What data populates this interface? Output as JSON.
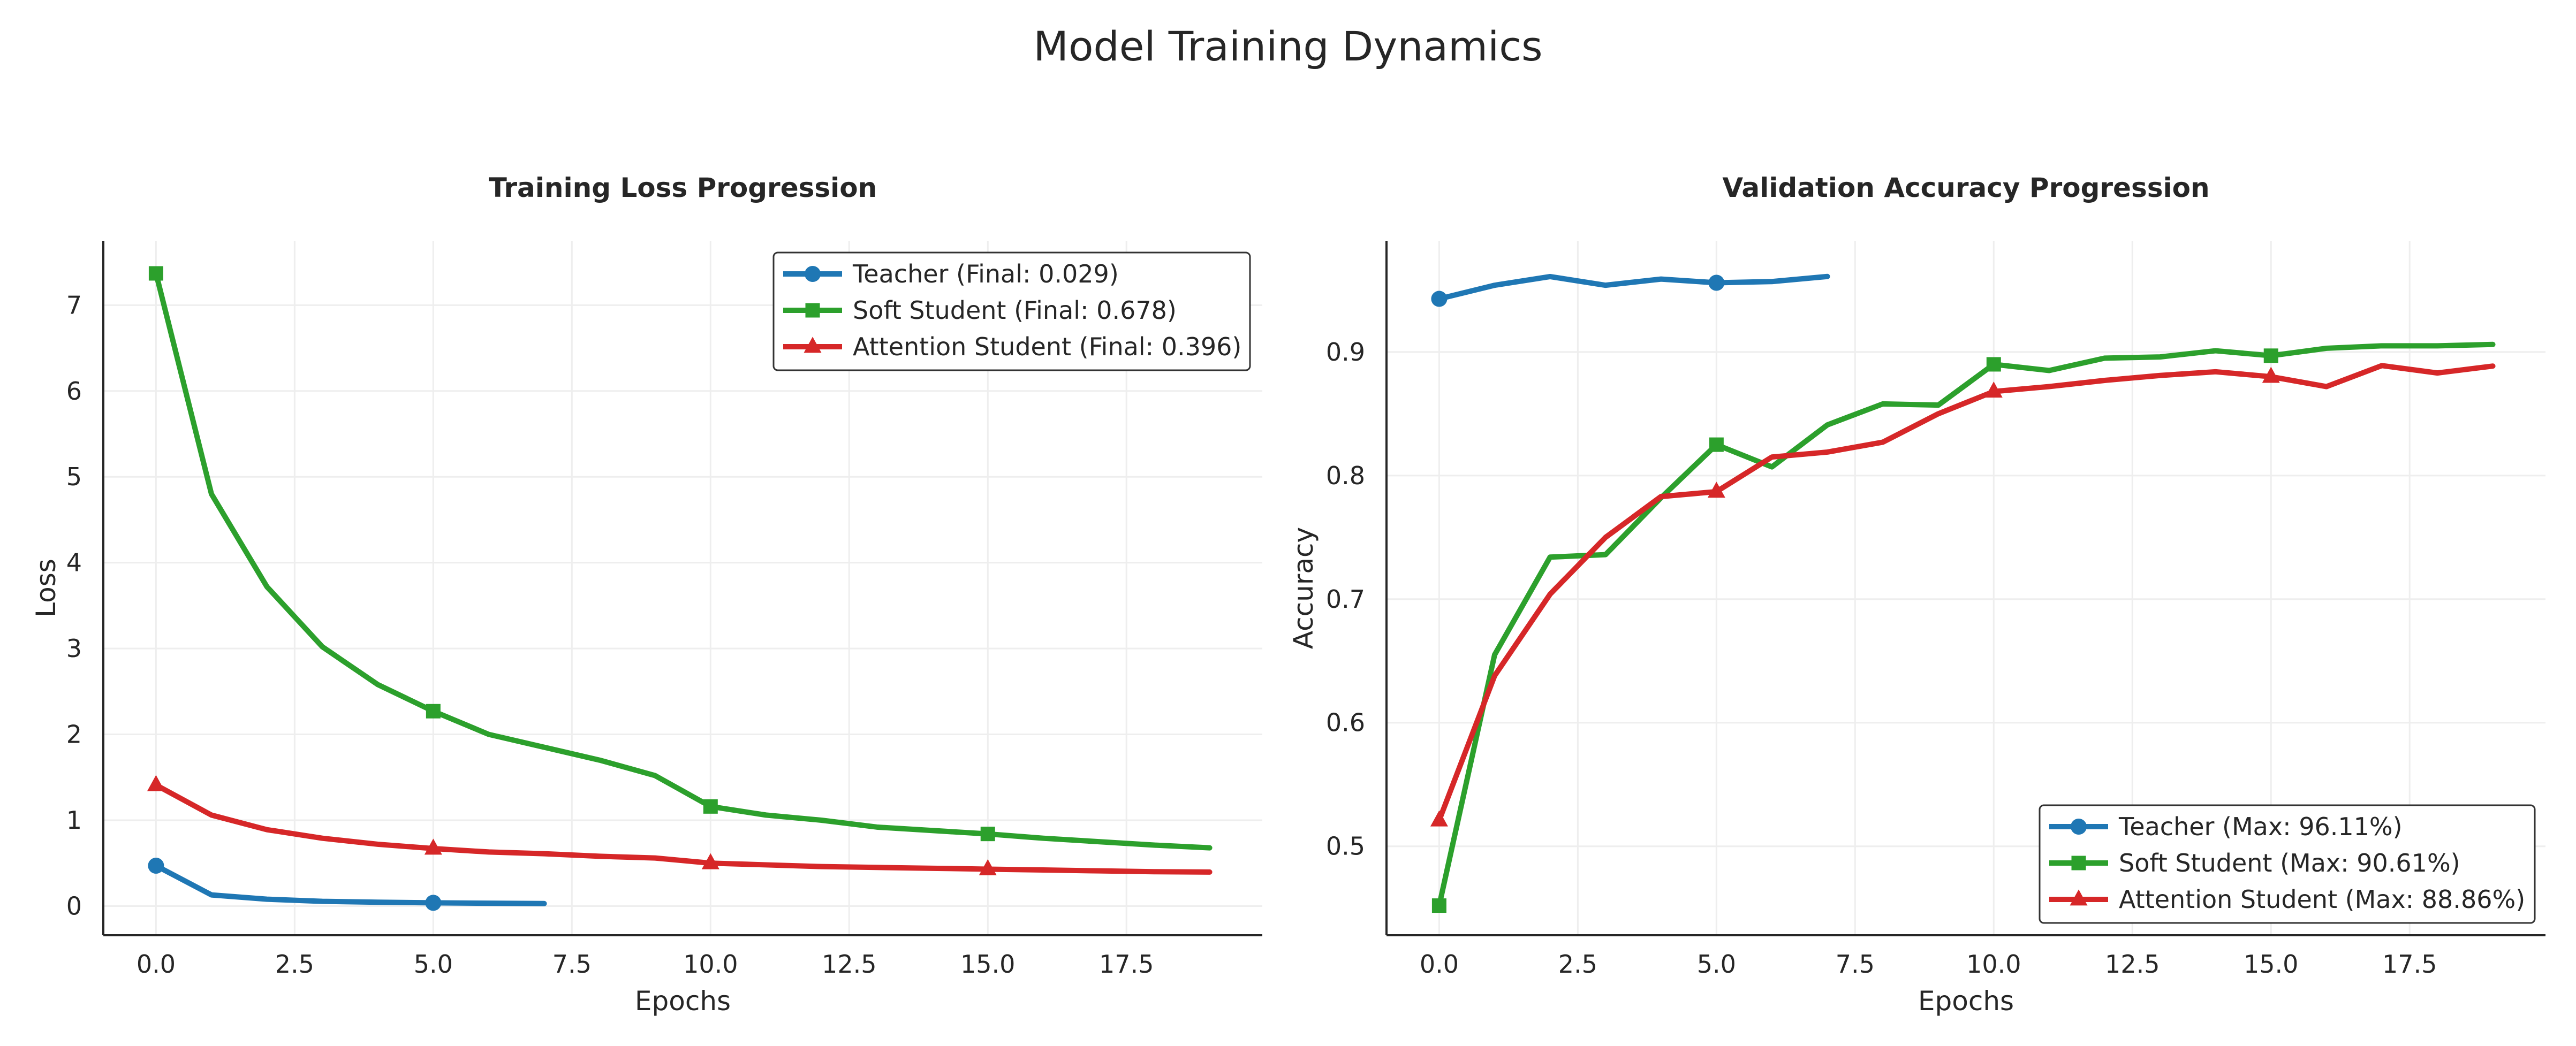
{
  "figure": {
    "title": "Model Training Dynamics"
  },
  "colors": {
    "teacher": "#1f77b4",
    "soft": "#2ca02c",
    "attention": "#d62728",
    "axis": "#262626",
    "grid": "#eeeeee",
    "text": "#262626"
  },
  "chart_data": [
    {
      "type": "line",
      "title": "Training Loss Progression",
      "xlabel": "Epochs",
      "ylabel": "Loss",
      "xlim": [
        -0.95,
        19.95
      ],
      "ylim": [
        -0.34,
        7.75
      ],
      "xticks": [
        0.0,
        2.5,
        5.0,
        7.5,
        10.0,
        12.5,
        15.0,
        17.5
      ],
      "xtick_labels": [
        "0.0",
        "2.5",
        "5.0",
        "7.5",
        "10.0",
        "12.5",
        "15.0",
        "17.5"
      ],
      "yticks": [
        0,
        1,
        2,
        3,
        4,
        5,
        6,
        7
      ],
      "ytick_labels": [
        "0",
        "1",
        "2",
        "3",
        "4",
        "5",
        "6",
        "7"
      ],
      "grid": true,
      "legend_position": "top-right",
      "series": [
        {
          "name": "Teacher (Final: 0.029)",
          "color_key": "teacher",
          "marker": "circle",
          "x": [
            0,
            1,
            2,
            3,
            4,
            5,
            6,
            7
          ],
          "y": [
            0.47,
            0.13,
            0.08,
            0.055,
            0.045,
            0.038,
            0.033,
            0.029
          ],
          "marker_x": [
            0,
            5
          ]
        },
        {
          "name": "Soft Student (Final: 0.678)",
          "color_key": "soft",
          "marker": "square",
          "x": [
            0,
            1,
            2,
            3,
            4,
            5,
            6,
            7,
            8,
            9,
            10,
            11,
            12,
            13,
            14,
            15,
            16,
            17,
            18,
            19
          ],
          "y": [
            7.37,
            4.8,
            3.72,
            3.02,
            2.58,
            2.27,
            2.0,
            1.85,
            1.7,
            1.52,
            1.16,
            1.06,
            1.0,
            0.92,
            0.88,
            0.84,
            0.79,
            0.75,
            0.71,
            0.678
          ],
          "marker_x": [
            0,
            5,
            10,
            15
          ]
        },
        {
          "name": "Attention Student (Final: 0.396)",
          "color_key": "attention",
          "marker": "triangle",
          "x": [
            0,
            1,
            2,
            3,
            4,
            5,
            6,
            7,
            8,
            9,
            10,
            11,
            12,
            13,
            14,
            15,
            16,
            17,
            18,
            19
          ],
          "y": [
            1.41,
            1.06,
            0.89,
            0.79,
            0.72,
            0.67,
            0.63,
            0.61,
            0.58,
            0.56,
            0.5,
            0.48,
            0.46,
            0.45,
            0.44,
            0.43,
            0.42,
            0.41,
            0.4,
            0.396
          ],
          "marker_x": [
            0,
            5,
            10,
            15
          ]
        }
      ]
    },
    {
      "type": "line",
      "title": "Validation Accuracy Progression",
      "xlabel": "Epochs",
      "ylabel": "Accuracy",
      "xlim": [
        -0.95,
        19.95
      ],
      "ylim": [
        0.428,
        0.99
      ],
      "xticks": [
        0.0,
        2.5,
        5.0,
        7.5,
        10.0,
        12.5,
        15.0,
        17.5
      ],
      "xtick_labels": [
        "0.0",
        "2.5",
        "5.0",
        "7.5",
        "10.0",
        "12.5",
        "15.0",
        "17.5"
      ],
      "yticks": [
        0.5,
        0.6,
        0.7,
        0.8,
        0.9
      ],
      "ytick_labels": [
        "0.5",
        "0.6",
        "0.7",
        "0.8",
        "0.9"
      ],
      "grid": true,
      "legend_position": "bottom-right",
      "series": [
        {
          "name": "Teacher (Max: 96.11%)",
          "color_key": "teacher",
          "marker": "circle",
          "x": [
            0,
            1,
            2,
            3,
            4,
            5,
            6,
            7
          ],
          "y": [
            0.943,
            0.954,
            0.961,
            0.954,
            0.959,
            0.956,
            0.957,
            0.9611
          ],
          "marker_x": [
            0,
            5
          ]
        },
        {
          "name": "Soft Student (Max: 90.61%)",
          "color_key": "soft",
          "marker": "square",
          "x": [
            0,
            1,
            2,
            3,
            4,
            5,
            6,
            7,
            8,
            9,
            10,
            11,
            12,
            13,
            14,
            15,
            16,
            17,
            18,
            19
          ],
          "y": [
            0.452,
            0.655,
            0.734,
            0.736,
            0.782,
            0.825,
            0.807,
            0.841,
            0.858,
            0.857,
            0.89,
            0.885,
            0.895,
            0.896,
            0.901,
            0.897,
            0.903,
            0.905,
            0.905,
            0.9061
          ],
          "marker_x": [
            0,
            5,
            10,
            15
          ]
        },
        {
          "name": "Attention Student (Max: 88.86%)",
          "color_key": "attention",
          "marker": "triangle",
          "x": [
            0,
            1,
            2,
            3,
            4,
            5,
            6,
            7,
            8,
            9,
            10,
            11,
            12,
            13,
            14,
            15,
            16,
            17,
            18,
            19
          ],
          "y": [
            0.521,
            0.638,
            0.704,
            0.75,
            0.783,
            0.787,
            0.815,
            0.819,
            0.827,
            0.85,
            0.868,
            0.872,
            0.877,
            0.881,
            0.884,
            0.88,
            0.872,
            0.889,
            0.883,
            0.8886
          ],
          "marker_x": [
            0,
            5,
            10,
            15
          ]
        }
      ]
    }
  ]
}
